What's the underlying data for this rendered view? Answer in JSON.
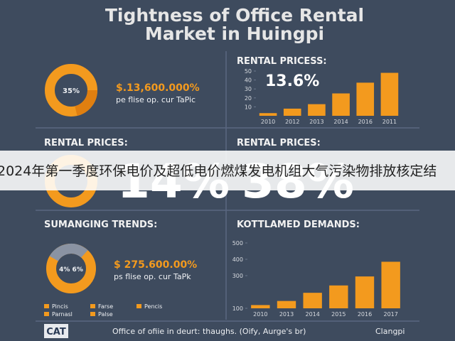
{
  "title": [
    "Tightness of Office Rental",
    "Market in Huingpi"
  ],
  "panels": {
    "top_left": {
      "percent": "35%",
      "amount": "$.13,600.000%",
      "caption": "pe flise op. cur TaPic"
    },
    "top_right": {
      "heading": "RENTAL PRICESS:",
      "highlight": "13.6%"
    },
    "middle_left": {
      "heading": "RENTAL PRICES:",
      "highlight": "14%"
    },
    "middle_right": {
      "heading": "RENTAL PRICES:",
      "highlight": "38%"
    },
    "bottom_left": {
      "heading": "SUMANGING TRENDS:",
      "percent": "4% 6%",
      "amount": "$ 275.600.00%",
      "caption": "ps flise op. cur TaPk",
      "legend": [
        "Pincis",
        "Farse",
        "Pencis",
        "Parnasl",
        "Palse"
      ]
    },
    "bottom_right": {
      "heading": "KOTTLAMED DEMANDS:"
    }
  },
  "banner": "2024年第一季度环保电价及超低电价燃煤发电机组大气污染物排放核定结",
  "footer": {
    "logo": "CAT",
    "source": "Office of ofiie in deurt: thaughs. (Oify, Aurge's br)",
    "place": "Clangpi"
  },
  "chart_data": [
    {
      "type": "bar",
      "categories": [
        "2010",
        "2012",
        "2013",
        "2014",
        "2016",
        "2011"
      ],
      "values": [
        3,
        8,
        13,
        25,
        37,
        48
      ],
      "color": "#f39a1e",
      "ylim": [
        0,
        50
      ],
      "yticks": [
        10,
        20,
        30,
        40,
        50
      ]
    },
    {
      "type": "bar",
      "categories": [
        "2010",
        "2013",
        "2014",
        "2015",
        "2016",
        "2017"
      ],
      "values": [
        120,
        145,
        195,
        240,
        295,
        385
      ],
      "color": "#f39a1e",
      "ylim": [
        100,
        500
      ],
      "yticks": [
        100,
        300,
        400,
        500
      ]
    }
  ]
}
